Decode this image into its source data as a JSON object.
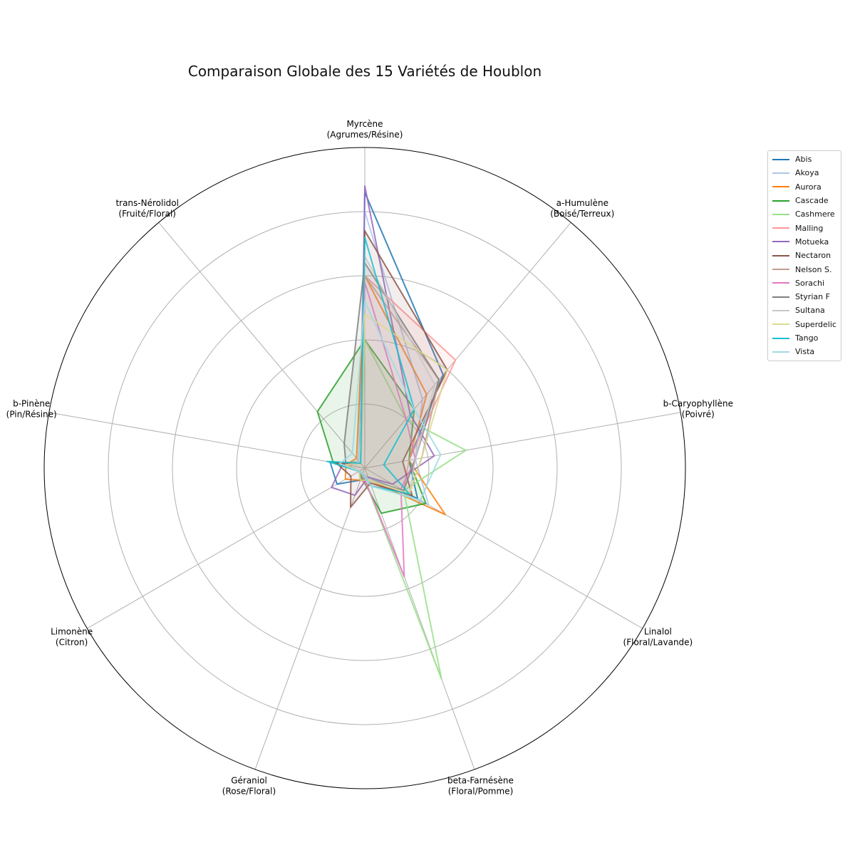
{
  "chart_data": {
    "type": "radar",
    "title": "Comparaison Globale des 15 Variétés de Houblon",
    "axes": [
      "Myrcène\n(Agrumes/Résine)",
      "a-Humulène\n(Boisé/Terreux)",
      "b-Caryophyllène\n(Poivré)",
      "Linalol\n(Floral/Lavande)",
      "beta-Farnésène\n(Floral/Pomme)",
      "Géraniol\n(Rose/Floral)",
      "Limonène\n(Citron)",
      "b-Pinène\n(Pin/Résine)",
      "trans-Nérolidol\n(Fruité/Floral)"
    ],
    "r_max": 50,
    "ring_step": 10,
    "grid": true,
    "legend_position": "right",
    "series": [
      {
        "name": "Abis",
        "color": "#1f77b4",
        "fill": false,
        "values": [
          43,
          19,
          7,
          9.5,
          1.5,
          2,
          5,
          5.5,
          1
        ]
      },
      {
        "name": "Akoya",
        "color": "#aec7e8",
        "fill": false,
        "values": [
          40,
          14,
          8,
          11.5,
          1.5,
          1,
          1,
          3.5,
          1.5
        ]
      },
      {
        "name": "Aurora",
        "color": "#ff7f0e",
        "fill": false,
        "values": [
          30,
          15,
          7,
          14.5,
          2,
          2,
          3.5,
          3,
          2
        ]
      },
      {
        "name": "Cascade",
        "color": "#2ca02c",
        "fill": true,
        "values": [
          20,
          12,
          7,
          11,
          7.5,
          1.5,
          1,
          5,
          11.5
        ]
      },
      {
        "name": "Cashmere",
        "color": "#98df8a",
        "fill": false,
        "values": [
          20,
          10,
          16,
          7,
          35,
          1,
          1,
          3,
          1
        ]
      },
      {
        "name": "Malling",
        "color": "#ff9896",
        "fill": true,
        "values": [
          30,
          22,
          7,
          7,
          3,
          2,
          1,
          4,
          1
        ]
      },
      {
        "name": "Motueka",
        "color": "#9467bd",
        "fill": false,
        "values": [
          44,
          11,
          11,
          5,
          1.5,
          4.5,
          6,
          3.5,
          1
        ]
      },
      {
        "name": "Nectaron",
        "color": "#8c564b",
        "fill": true,
        "values": [
          37,
          20,
          6,
          8.5,
          2.5,
          6.5,
          2.5,
          4.5,
          1
        ]
      },
      {
        "name": "Nelson S.",
        "color": "#c49c94",
        "fill": false,
        "values": [
          30,
          18,
          9,
          8,
          2,
          1,
          1,
          2.5,
          1
        ]
      },
      {
        "name": "Sorachi",
        "color": "#e377c2",
        "fill": false,
        "values": [
          29,
          10,
          8,
          6.5,
          18,
          1,
          1,
          3,
          1
        ]
      },
      {
        "name": "Styrian F",
        "color": "#7f7f7f",
        "fill": true,
        "values": [
          32,
          18,
          8,
          7,
          2,
          2,
          1,
          3,
          5
        ]
      },
      {
        "name": "Sultana",
        "color": "#c7c7c7",
        "fill": true,
        "values": [
          33,
          17,
          8,
          8,
          2,
          1,
          1,
          2,
          1
        ]
      },
      {
        "name": "Superdelic",
        "color": "#dbdb8d",
        "fill": false,
        "values": [
          24,
          20,
          9,
          8,
          2,
          2,
          1,
          3,
          1
        ]
      },
      {
        "name": "Tango",
        "color": "#17becf",
        "fill": false,
        "values": [
          36,
          12,
          3,
          8,
          3,
          1,
          1,
          6,
          1
        ]
      },
      {
        "name": "Vista",
        "color": "#9edae5",
        "fill": false,
        "values": [
          26,
          12,
          12,
          10,
          3,
          1,
          1,
          4,
          3
        ]
      }
    ]
  }
}
